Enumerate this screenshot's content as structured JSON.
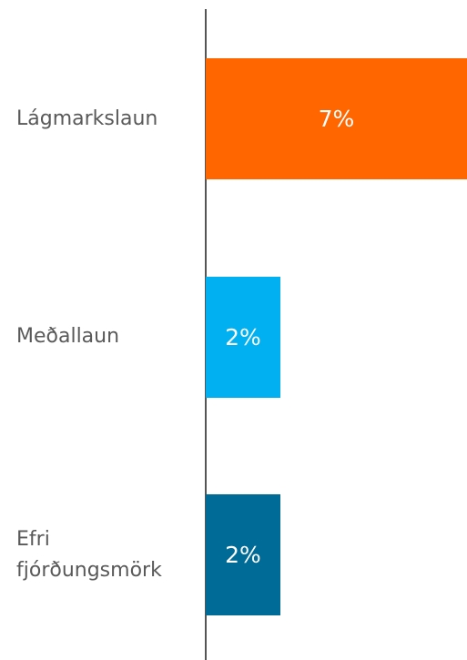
{
  "chart_data": {
    "type": "barh",
    "categories": [
      "Lágmarkslaun",
      "Meðallaun",
      "Efri fjórðungsmörk"
    ],
    "values": [
      7,
      2,
      2
    ],
    "value_labels": [
      "7%",
      "2%",
      "2%"
    ],
    "colors": [
      "#ff6600",
      "#00b0f0",
      "#006b96"
    ],
    "xlim": [
      0,
      7
    ]
  }
}
